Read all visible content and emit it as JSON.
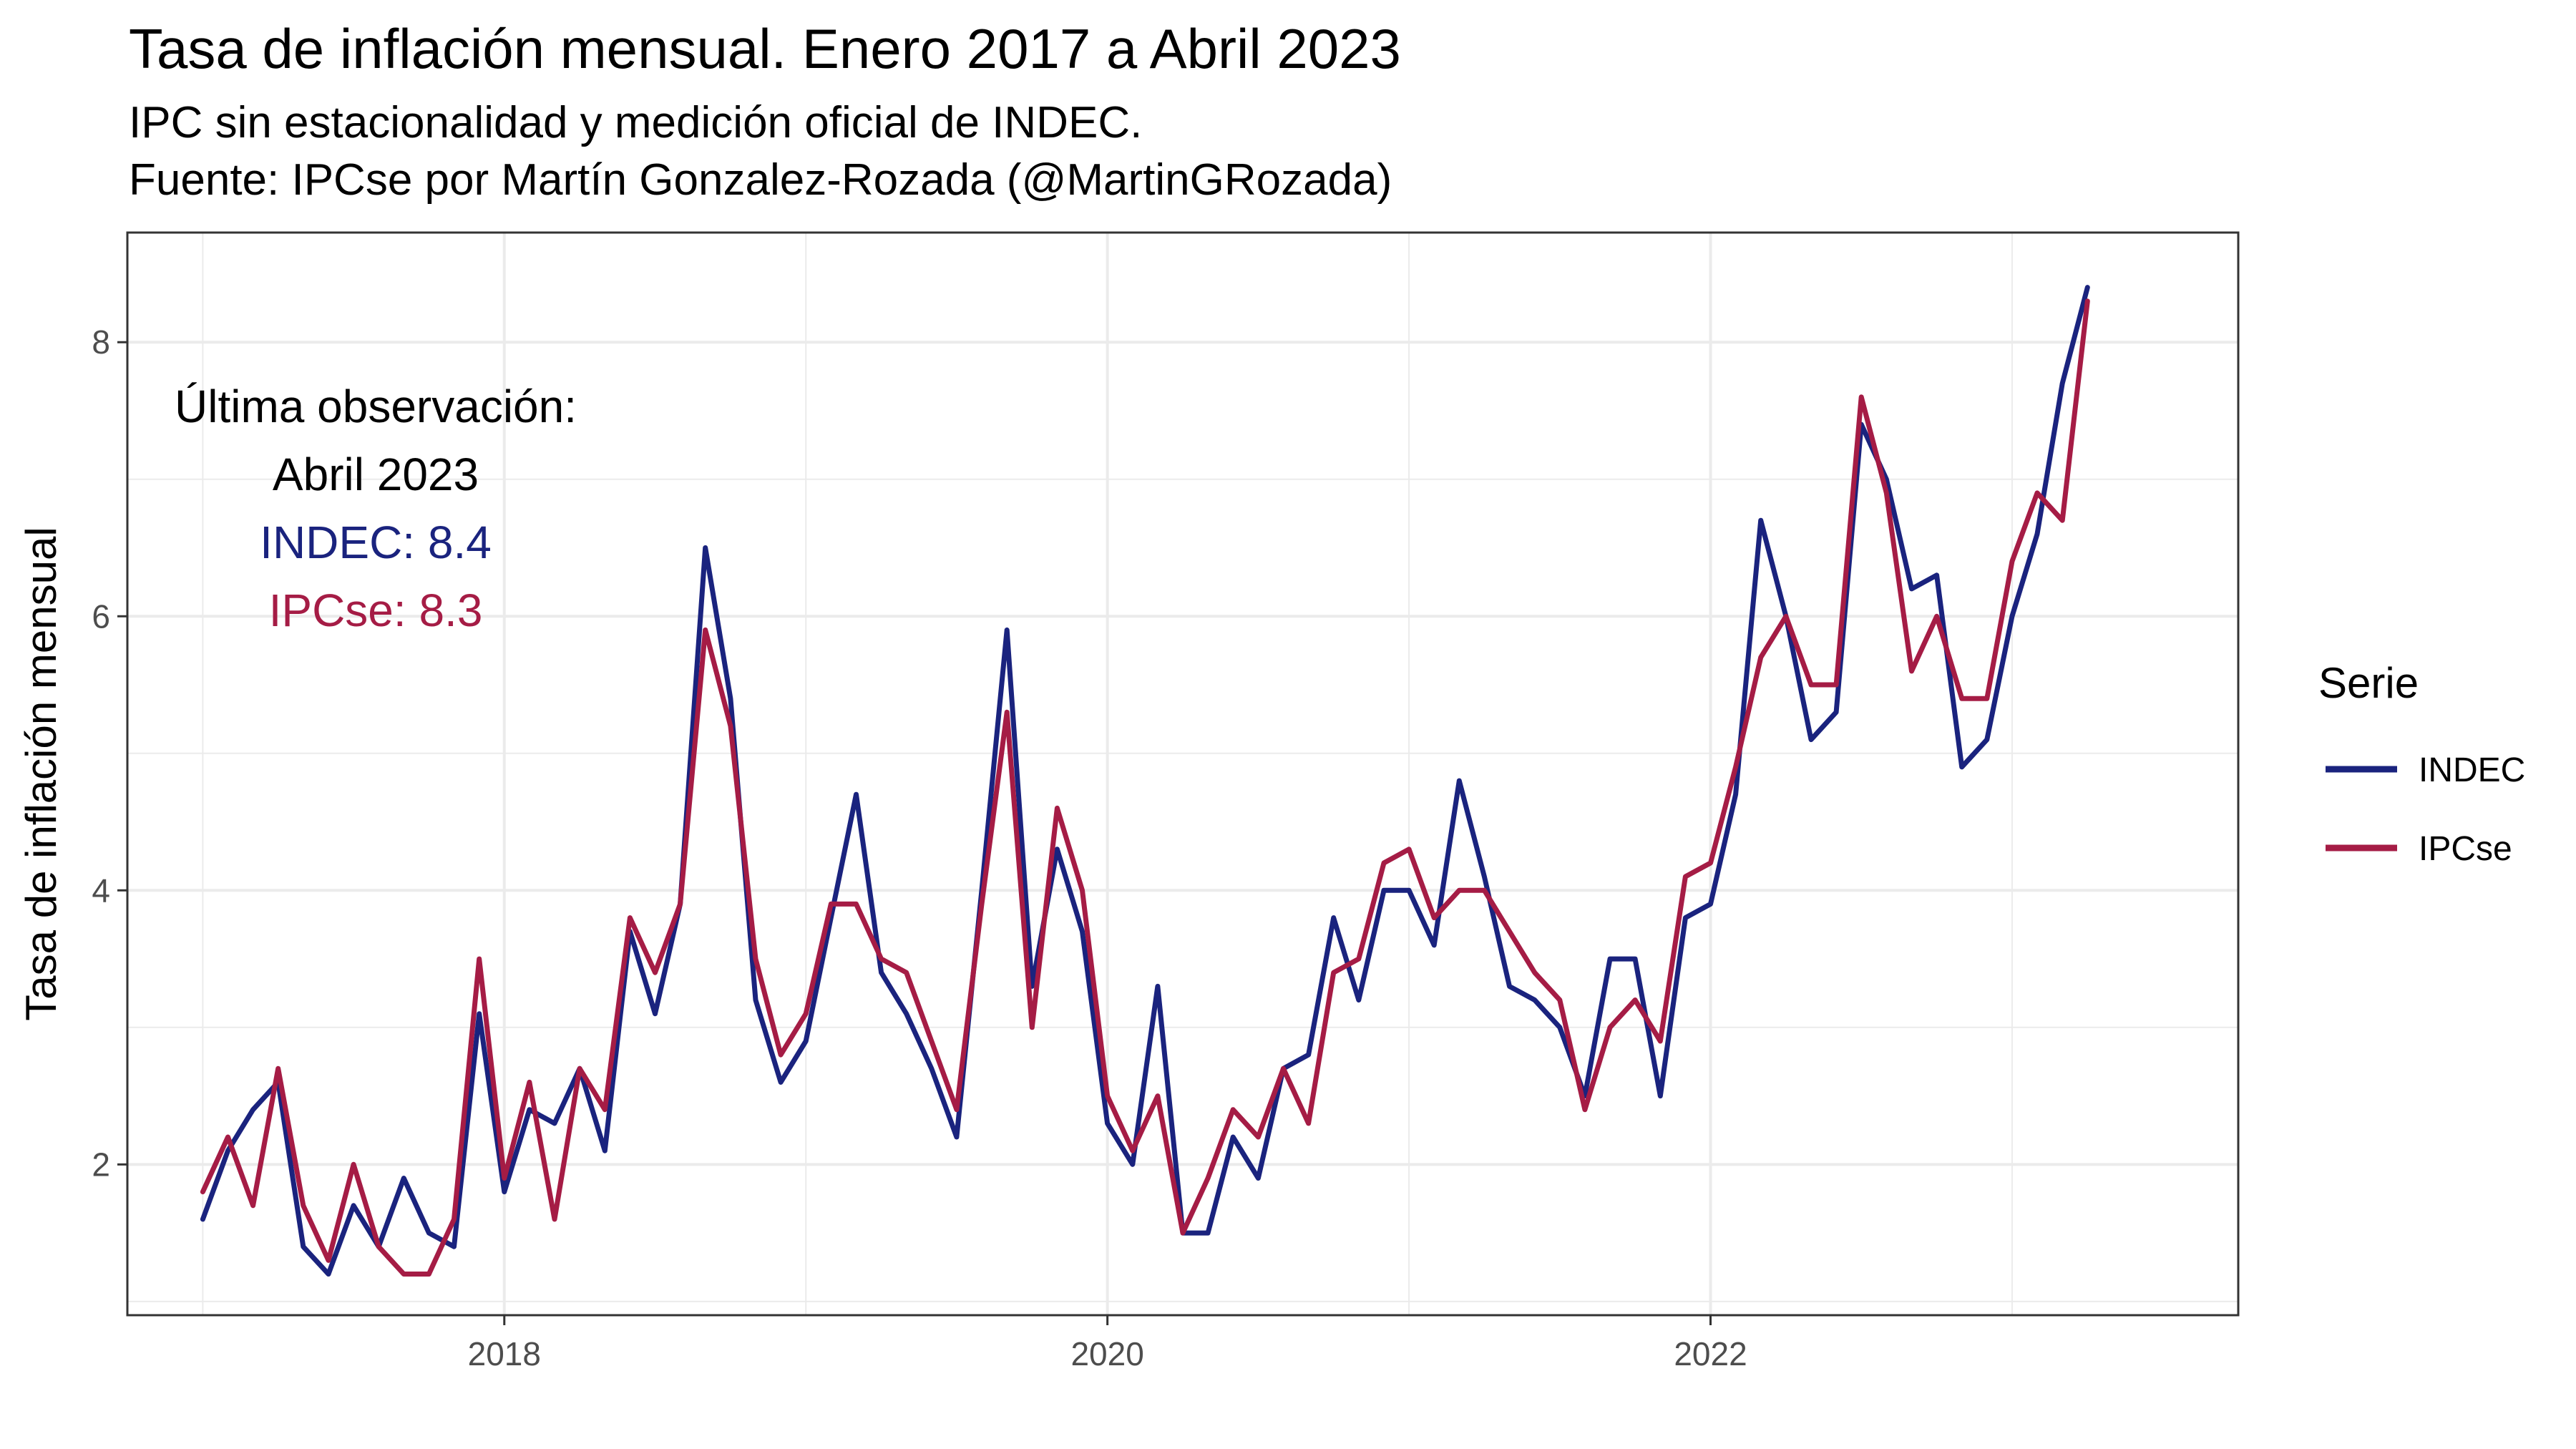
{
  "title": "Tasa de inflación mensual. Enero 2017 a Abril 2023",
  "subtitle_line1": "IPC sin estacionalidad y medición oficial de INDEC.",
  "subtitle_line2": "Fuente: IPCse por Martín Gonzalez-Rozada (@MartinGRozada)",
  "colors": {
    "INDEC": "#1a237e",
    "IPCse": "#a51c45",
    "grid": "#ebebeb",
    "axis": "#333333"
  },
  "annotation": {
    "line1": "Última observación:",
    "line2": "Abril 2023",
    "line3": "INDEC:  8.4",
    "line4": "IPCse:  8.3"
  },
  "legend": {
    "title": "Serie",
    "items": [
      "INDEC",
      "IPCse"
    ]
  },
  "chart_data": {
    "type": "line",
    "title": "Tasa de inflación mensual. Enero 2017 a Abril 2023",
    "ylabel": "Tasa de inflación mensual",
    "xlabel": "",
    "x_start": "2017-01",
    "x_end": "2023-04",
    "xlim": [
      "2016-10",
      "2023-10"
    ],
    "ylim": [
      0.9,
      8.8
    ],
    "x_ticks": [
      "2018",
      "2020",
      "2022"
    ],
    "y_ticks": [
      2,
      4,
      6,
      8
    ],
    "grid": true,
    "legend_position": "right",
    "series": [
      {
        "name": "INDEC",
        "values": [
          1.6,
          2.1,
          2.4,
          2.6,
          1.4,
          1.2,
          1.7,
          1.4,
          1.9,
          1.5,
          1.4,
          3.1,
          1.8,
          2.4,
          2.3,
          2.7,
          2.1,
          3.7,
          3.1,
          3.9,
          6.5,
          5.4,
          3.2,
          2.6,
          2.9,
          3.8,
          4.7,
          3.4,
          3.1,
          2.7,
          2.2,
          4.0,
          5.9,
          3.3,
          4.3,
          3.7,
          2.3,
          2.0,
          3.3,
          1.5,
          1.5,
          2.2,
          1.9,
          2.7,
          2.8,
          3.8,
          3.2,
          4.0,
          4.0,
          3.6,
          4.8,
          4.1,
          3.3,
          3.2,
          3.0,
          2.5,
          3.5,
          3.5,
          2.5,
          3.8,
          3.9,
          4.7,
          6.7,
          6.0,
          5.1,
          5.3,
          7.4,
          7.0,
          6.2,
          6.3,
          4.9,
          5.1,
          6.0,
          6.6,
          7.7,
          8.4
        ]
      },
      {
        "name": "IPCse",
        "values": [
          1.8,
          2.2,
          1.7,
          2.7,
          1.7,
          1.3,
          2.0,
          1.4,
          1.2,
          1.2,
          1.6,
          3.5,
          1.9,
          2.6,
          1.6,
          2.7,
          2.4,
          3.8,
          3.4,
          3.9,
          5.9,
          5.2,
          3.5,
          2.8,
          3.1,
          3.9,
          3.9,
          3.5,
          3.4,
          2.9,
          2.4,
          3.9,
          5.3,
          3.0,
          4.6,
          4.0,
          2.5,
          2.1,
          2.5,
          1.5,
          1.9,
          2.4,
          2.2,
          2.7,
          2.3,
          3.4,
          3.5,
          4.2,
          4.3,
          3.8,
          4.0,
          4.0,
          3.7,
          3.4,
          3.2,
          2.4,
          3.0,
          3.2,
          2.9,
          4.1,
          4.2,
          4.9,
          5.7,
          6.0,
          5.5,
          5.5,
          7.6,
          6.9,
          5.6,
          6.0,
          5.4,
          5.4,
          6.4,
          6.9,
          6.7,
          8.3
        ]
      }
    ]
  }
}
